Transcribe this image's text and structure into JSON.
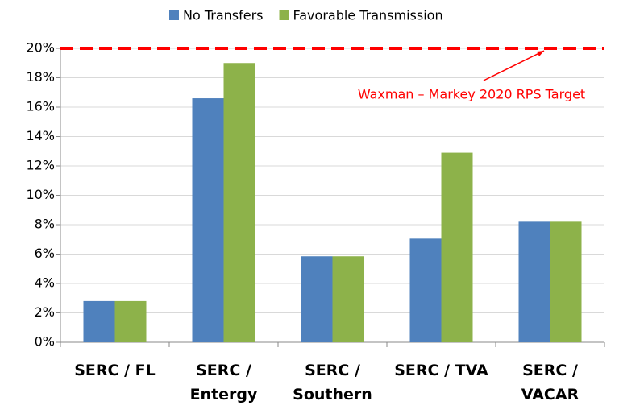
{
  "chart_data": {
    "type": "bar",
    "categories": [
      "SERC / FL",
      "SERC / Entergy",
      "SERC / Southern",
      "SERC / TVA",
      "SERC / VACAR"
    ],
    "series": [
      {
        "name": "No Transfers",
        "color": "#4f81bd",
        "values": [
          2.8,
          16.6,
          5.85,
          7.05,
          8.2
        ]
      },
      {
        "name": "Favorable Transmission",
        "color": "#8db24a",
        "values": [
          2.8,
          19.0,
          5.85,
          12.9,
          8.2
        ]
      }
    ],
    "ylim": [
      0,
      20
    ],
    "yticks": [
      {
        "value": 0,
        "label": "0%"
      },
      {
        "value": 2,
        "label": "2%"
      },
      {
        "value": 4,
        "label": "4%"
      },
      {
        "value": 6,
        "label": "6%"
      },
      {
        "value": 8,
        "label": "8%"
      },
      {
        "value": 10,
        "label": "10%"
      },
      {
        "value": 12,
        "label": "12%"
      },
      {
        "value": 14,
        "label": "14%"
      },
      {
        "value": 16,
        "label": "16%"
      },
      {
        "value": 18,
        "label": "18%"
      },
      {
        "value": 20,
        "label": "20%"
      }
    ],
    "grid": true,
    "legend": "top",
    "reference_line": {
      "value": 20,
      "label": "Waxman – Markey 2020 RPS Target",
      "color": "#ff0000"
    }
  }
}
